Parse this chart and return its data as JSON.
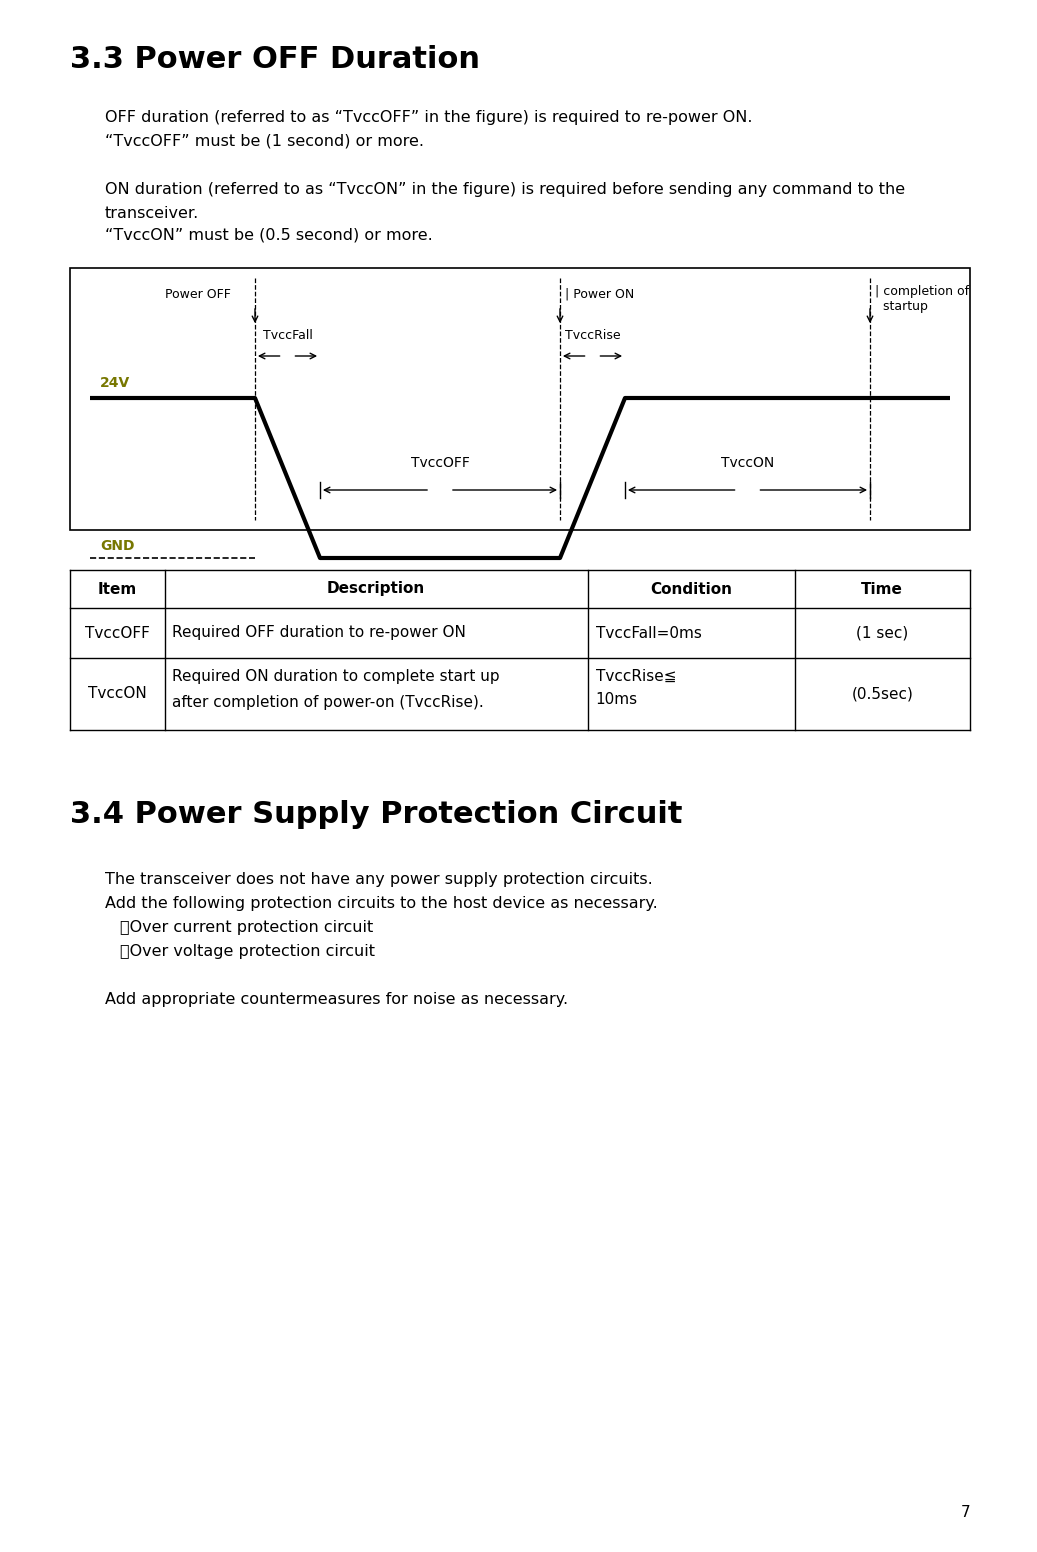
{
  "title_33": "3.3 Power OFF Duration",
  "title_34": "3.4 Power Supply Protection Circuit",
  "para1_line1": "OFF duration (referred to as “TvccOFF” in the figure) is required to re-power ON.",
  "para1_line2": "“TvccOFF” must be (1 second) or more.",
  "para2_line1": "ON duration (referred to as “TvccON” in the figure) is required before sending any command to the",
  "para2_line2": "transceiver.",
  "para2_line3": "“TvccON” must be (0.5 second) or more.",
  "table_headers": [
    "Item",
    "Description",
    "Condition",
    "Time"
  ],
  "table_row1": [
    "TvccOFF",
    "Required OFF duration to re-power ON",
    "TvccFall=0ms",
    "(1 sec)"
  ],
  "table_row2_col0": "TvccON",
  "table_row2_col1a": "Required ON duration to complete start up",
  "table_row2_col1b": "after completion of power-on (TvccRise).",
  "table_row2_col2a": "TvccRise≦",
  "table_row2_col2b": "10ms",
  "table_row2_col3": "(0.5sec)",
  "section34_line1": "The transceiver does not have any power supply protection circuits.",
  "section34_line2": "Add the following protection circuits to the host device as necessary.",
  "section34_bullet1": "・Over current protection circuit",
  "section34_bullet2": "・Over voltage protection circuit",
  "section34_line3": "Add appropriate countermeasures for noise as necessary.",
  "page_number": "7",
  "bg_color": "#ffffff",
  "text_color": "#000000",
  "label_color_24v": "#7a7a00",
  "label_color_gnd": "#5a5a00"
}
